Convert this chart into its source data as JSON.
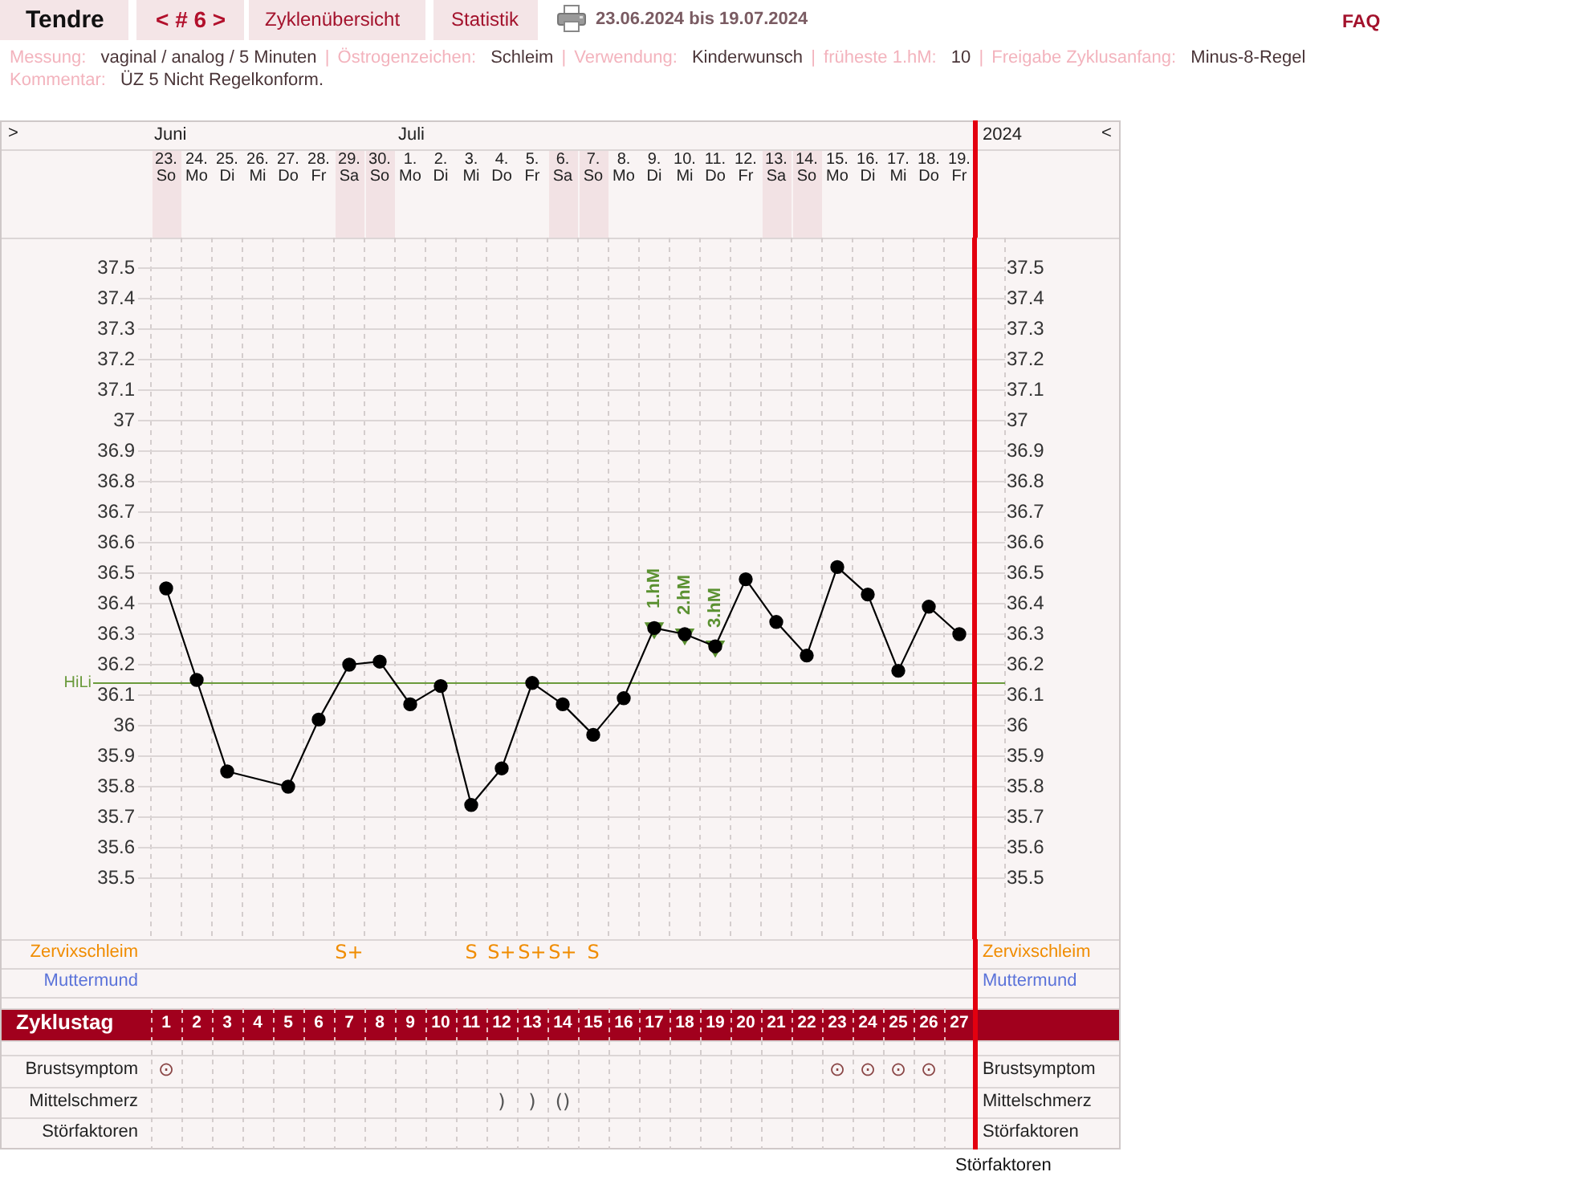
{
  "chart_data": [
    {
      "type": "line",
      "title": "Tendre",
      "subtitle": "23.06.2024 bis 19.07.2024",
      "x2label": "Zyklustag",
      "categories": [
        "23. So",
        "24. Mo",
        "25. Di",
        "26. Mi",
        "27. Do",
        "28. Fr",
        "29. Sa",
        "30. So",
        "1. Mo",
        "2. Di",
        "3. Mi",
        "4. Do",
        "5. Fr",
        "6. Sa",
        "7. So",
        "8. Mo",
        "9. Di",
        "10. Mi",
        "11. Do",
        "12. Fr",
        "13. Sa",
        "14. So",
        "15. Mo",
        "16. Di",
        "17. Mi",
        "18. Do",
        "19. Fr",
        null
      ],
      "series": [
        {
          "color": "#000000",
          "values": [
            36.45,
            36.15,
            35.85,
            null,
            35.8,
            36.02,
            36.2,
            36.21,
            36.07,
            36.13,
            35.74,
            35.86,
            36.14,
            36.07,
            35.97,
            36.09,
            36.32,
            36.3,
            36.26,
            36.48,
            36.34,
            36.23,
            36.52,
            36.43,
            36.18,
            36.39,
            36.3,
            null
          ]
        },
        {
          "type": "scatter",
          "color": "#5b9131",
          "marker": "triangle",
          "values": [
            null,
            null,
            null,
            null,
            null,
            null,
            null,
            null,
            null,
            null,
            null,
            null,
            null,
            null,
            null,
            null,
            36.32,
            36.3,
            36.26,
            null,
            null,
            null,
            null,
            null,
            null,
            null,
            null,
            null
          ]
        }
      ],
      "marker": "circle",
      "line_style": "solid",
      "grid": true,
      "legend": false,
      "ylim": [
        35.3,
        37.6
      ],
      "yticks": [
        35.5,
        35.6,
        35.7,
        35.8,
        35.9,
        36,
        36.1,
        36.2,
        36.3,
        36.4,
        36.5,
        36.6,
        36.7,
        36.8,
        36.9,
        37,
        37.1,
        37.2,
        37.3,
        37.4,
        37.5
      ],
      "y2lim": [
        35.3,
        37.6
      ],
      "y2ticks": [
        35.5,
        35.6,
        35.7,
        35.8,
        35.9,
        36,
        36.1,
        36.2,
        36.3,
        36.4,
        36.5,
        36.6,
        36.7,
        36.8,
        36.9,
        37,
        37.1,
        37.2,
        37.3,
        37.4,
        37.5
      ],
      "x2lim": [
        0.5,
        28.5
      ],
      "x2ticks": [
        1,
        2,
        3,
        4,
        5,
        6,
        7,
        8,
        9,
        10,
        11,
        12,
        13,
        14,
        15,
        16,
        17,
        18,
        19,
        20,
        21,
        22,
        23,
        24,
        25,
        26,
        27
      ],
      "ref_lines": [
        {
          "axis": "y",
          "value": 36.14,
          "label": "HiLi",
          "color": "#6b9a3c"
        },
        {
          "axis": "x2",
          "value": 27.5,
          "color": "#e3000f"
        }
      ],
      "annotations": [
        "< # 6 >",
        "Zyklenübersicht",
        "Statistik",
        "FAQ",
        "Messung: vaginal / analog / 5 Minuten | Östrogenzeichen: Schleim | Verwendung: Kinderwunsch | früheste 1.hM: 10 | Freigabe Zyklusanfang: Minus-8-Regel",
        "Kommentar: ÜZ 5 Nicht Regelkonform.",
        ">",
        "Juni",
        "Juli",
        "2024",
        "<",
        "Störfaktoren",
        {
          "text": "1.hM",
          "x": "9. Di",
          "y": 36.32
        },
        {
          "text": "2.hM",
          "x": "10. Mi",
          "y": 36.3
        },
        {
          "text": "3.hM",
          "x": "11. Do",
          "y": 36.26
        }
      ]
    },
    {
      "type": "other",
      "y_categories": [
        "Zervixschleim",
        "Muttermund",
        "Brustsymptom",
        "Mittelschmerz",
        "Störfaktoren"
      ],
      "y2_categories": [
        "Zervixschleim",
        "Muttermund",
        "Brustsymptom",
        "Mittelschmerz",
        "Störfaktoren"
      ],
      "cell_labels": [
        [
          null,
          null,
          null,
          null,
          null,
          null,
          "S+",
          null,
          null,
          null,
          "S",
          "S+",
          "S+",
          "S+",
          "S",
          null,
          null,
          null,
          null,
          null,
          null,
          null,
          null,
          null,
          null,
          null,
          null
        ],
        [
          null,
          null,
          null,
          null,
          null,
          null,
          null,
          null,
          null,
          null,
          null,
          null,
          null,
          null,
          null,
          null,
          null,
          null,
          null,
          null,
          null,
          null,
          null,
          null,
          null,
          null,
          null
        ],
        [
          "⊙",
          null,
          null,
          null,
          null,
          null,
          null,
          null,
          null,
          null,
          null,
          null,
          null,
          null,
          null,
          null,
          null,
          null,
          null,
          null,
          null,
          null,
          "⊙",
          "⊙",
          "⊙",
          "⊙",
          null
        ],
        [
          null,
          null,
          null,
          null,
          null,
          null,
          null,
          null,
          null,
          null,
          null,
          ")",
          ")",
          "()",
          null,
          null,
          null,
          null,
          null,
          null,
          null,
          null,
          null,
          null,
          null,
          null,
          null
        ],
        [
          null,
          null,
          null,
          null,
          null,
          null,
          null,
          null,
          null,
          null,
          null,
          null,
          null,
          null,
          null,
          null,
          null,
          null,
          null,
          null,
          null,
          null,
          null,
          null,
          null,
          null,
          null
        ]
      ]
    }
  ]
}
